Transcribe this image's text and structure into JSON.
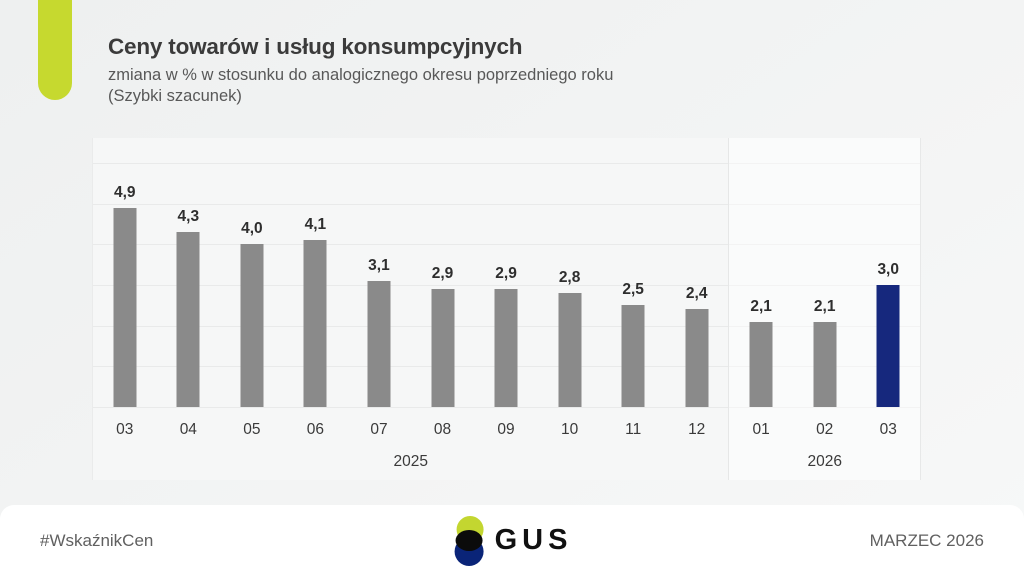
{
  "header": {
    "title": "Ceny towarów i usług konsumpcyjnych",
    "subtitle": "zmiana w % w stosunku do analogicznego okresu poprzedniego roku",
    "note": "(Szybki szacunek)"
  },
  "chart_data": {
    "type": "bar",
    "categories": [
      "03",
      "04",
      "05",
      "06",
      "07",
      "08",
      "09",
      "10",
      "11",
      "12",
      "01",
      "02",
      "03"
    ],
    "values": [
      4.9,
      4.3,
      4.0,
      4.1,
      3.1,
      2.9,
      2.9,
      2.8,
      2.5,
      2.4,
      2.1,
      2.1,
      3.0
    ],
    "value_labels": [
      "4,9",
      "4,3",
      "4,0",
      "4,1",
      "3,1",
      "2,9",
      "2,9",
      "2,8",
      "2,5",
      "2,4",
      "2,1",
      "2,1",
      "3,0"
    ],
    "groups": [
      {
        "label": "2025",
        "count": 10
      },
      {
        "label": "2026",
        "count": 3
      }
    ],
    "highlight_index": 12,
    "title": "Ceny towarów i usług konsumpcyjnych",
    "xlabel": "",
    "ylabel": "zmiana w %",
    "ylim": [
      0,
      6
    ],
    "grid": true,
    "legend": false,
    "bar_color": "#8a8a8a",
    "highlight_color": "#16287d"
  },
  "footer": {
    "hashtag": "#WskaźnikCen",
    "logo_text": "GUS",
    "date": "MARZEC 2026"
  },
  "colors": {
    "accent_lime": "#c6d92f",
    "logo_green": "#c3d630",
    "logo_navy": "#0a2478"
  }
}
